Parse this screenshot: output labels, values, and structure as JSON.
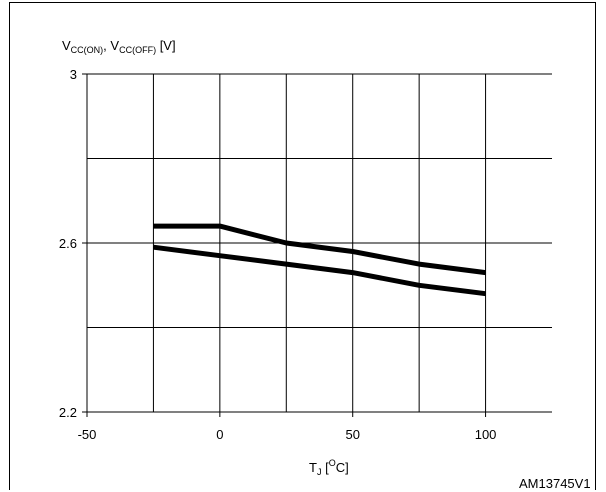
{
  "chart_data": {
    "type": "line",
    "ylabel_parts": {
      "v1": "V",
      "sub1": "CC(ON)",
      "sep": ", ",
      "v2": "V",
      "sub2": "CC(OFF)",
      "unit": " [V]"
    },
    "xlabel_parts": {
      "t": "T",
      "sub": "J",
      "open": " [",
      "sup": "O",
      "close": "C]"
    },
    "id_label": "AM13745V1",
    "xlim": [
      -50,
      125
    ],
    "ylim": [
      2.2,
      3.0
    ],
    "x_ticks": [
      {
        "value": -50,
        "label": "-50"
      },
      {
        "value": 0,
        "label": "0"
      },
      {
        "value": 50,
        "label": "50"
      },
      {
        "value": 100,
        "label": "100"
      }
    ],
    "y_ticks": [
      {
        "value": 2.2,
        "label": "2.2"
      },
      {
        "value": 2.6,
        "label": "2.6"
      },
      {
        "value": 3.0,
        "label": "3"
      }
    ],
    "x_grid": [
      -25,
      0,
      25,
      50,
      75,
      100
    ],
    "y_grid": [
      2.4,
      2.6,
      2.8,
      3.0
    ],
    "series": [
      {
        "x": [
          -25,
          0,
          25,
          50,
          75,
          100
        ],
        "values": [
          2.64,
          2.64,
          2.6,
          2.58,
          2.55,
          2.53
        ]
      },
      {
        "x": [
          -25,
          0,
          25,
          50,
          75,
          100
        ],
        "values": [
          2.59,
          2.57,
          2.55,
          2.53,
          2.5,
          2.48
        ]
      }
    ]
  }
}
